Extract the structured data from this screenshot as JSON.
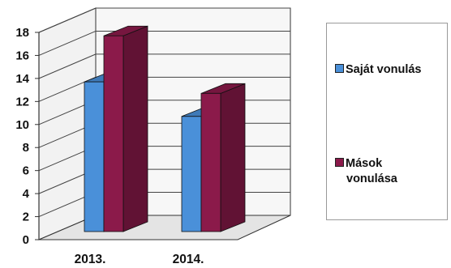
{
  "chart_data": {
    "type": "bar",
    "categories": [
      "2013.",
      "2014."
    ],
    "y_ticks": [
      "0",
      "2",
      "4",
      "6",
      "8",
      "10",
      "12",
      "14",
      "16",
      "18"
    ],
    "ylim": [
      0,
      18
    ],
    "grid": true,
    "legend_position": "right",
    "series": [
      {
        "name": "Saját vonulás",
        "values": [
          13,
          10
        ],
        "color": "#4a90d9"
      },
      {
        "name": "Mások vonulása",
        "values": [
          17,
          12
        ],
        "color": "#8b1a4a"
      }
    ]
  },
  "legend": {
    "items": [
      {
        "line1": "Saját vonulás",
        "line2": ""
      },
      {
        "line1": "Mások",
        "line2": "vonulása"
      }
    ]
  }
}
